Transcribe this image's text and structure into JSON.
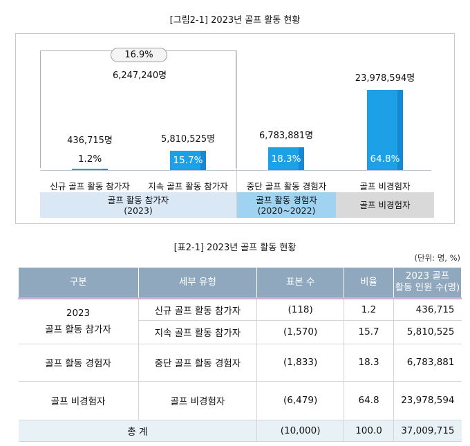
{
  "figure": {
    "caption": "[그림2-1] 2023년 골프 활동 현황",
    "share_bubble": "16.9%",
    "combined_total": "6,247,240명",
    "bars": [
      {
        "value_label": "436,715명",
        "percent": "1.2%",
        "percent_value": 1.2,
        "category": "신규 골프 활동 참가자"
      },
      {
        "value_label": "5,810,525명",
        "percent": "15.7%",
        "percent_value": 15.7,
        "category": "지속 골프 활동 참가자"
      },
      {
        "value_label": "6,783,881명",
        "percent": "18.3%",
        "percent_value": 18.3,
        "category": "중단 골프 활동 경험자"
      },
      {
        "value_label": "23,978,594명",
        "percent": "64.8%",
        "percent_value": 64.8,
        "category": "골프 비경험자"
      }
    ],
    "groups": [
      {
        "line1": "골프 활동 참가자",
        "line2": "(2023)",
        "color": "#dae8f5"
      },
      {
        "line1": "골프 활동 경험자",
        "line2": "(2020~2022)",
        "color": "#9fd3f1"
      },
      {
        "line1": "골프 비경험자",
        "line2": "",
        "color": "#d9d9d9"
      }
    ],
    "colors": {
      "bar": "#1ea0e6"
    }
  },
  "table": {
    "caption": "[표2-1] 2023년 골프 활동 현황",
    "unit": "(단위: 명, %)",
    "headers": {
      "group": "구분",
      "type": "세부 유형",
      "sample": "표본 수",
      "ratio": "비율",
      "count_line1": "2023 골프",
      "count_line2": "활동 인원 수(명)"
    },
    "group_2023_line1": "2023",
    "group_2023_line2": "골프 활동 참가자",
    "rows": [
      {
        "type": "신규 골프 활동 참가자",
        "sample": "(118)",
        "ratio": "1.2",
        "count": "436,715"
      },
      {
        "type": "지속 골프 활동 참가자",
        "sample": "(1,570)",
        "ratio": "15.7",
        "count": "5,810,525"
      },
      {
        "group": "골프 활동 경험자",
        "type": "중단 골프 활동 경험자",
        "sample": "(1,833)",
        "ratio": "18.3",
        "count": "6,783,881"
      },
      {
        "group": "골프 비경험자",
        "type": "골프 비경험자",
        "sample": "(6,479)",
        "ratio": "64.8",
        "count": "23,978,594"
      }
    ],
    "total": {
      "label": "총 계",
      "sample": "(10,000)",
      "ratio": "100.0",
      "count": "37,009,715"
    },
    "colors": {
      "header": "#8fa8bd",
      "total_row": "#e8f1f5"
    }
  }
}
